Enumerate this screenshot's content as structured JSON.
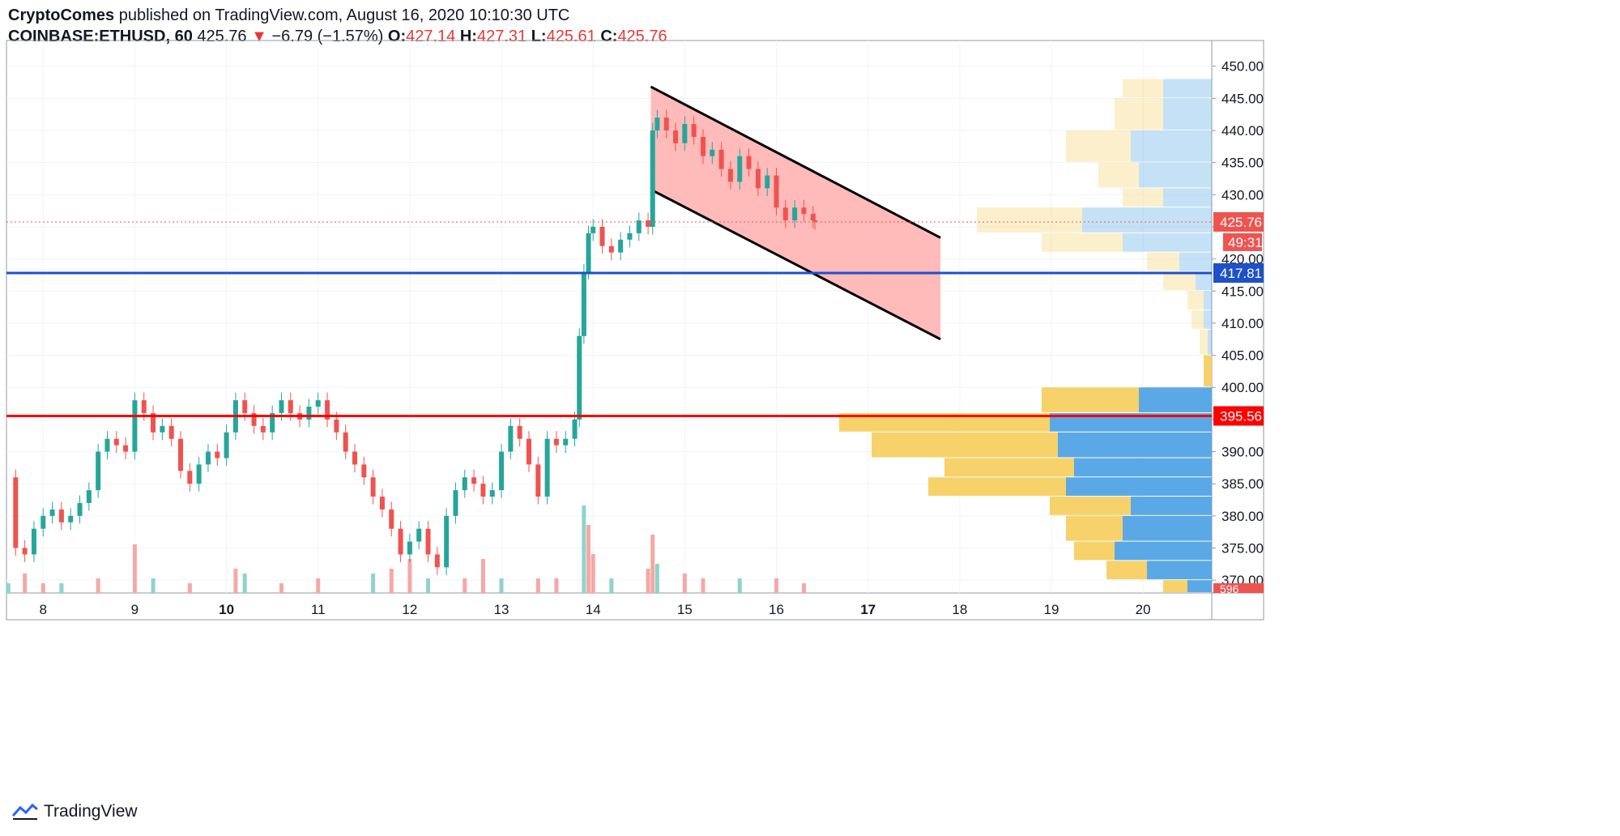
{
  "header": {
    "author": "CryptoComes",
    "published_text": "published on TradingView.com, August 16, 2020 10:10:30 UTC",
    "symbol": "COINBASE:ETHUSD, 60",
    "last": "425.76",
    "change_arrow": "▼",
    "change": "−6.79 (−1.57%)",
    "o_label": "O:",
    "o": "427.14",
    "h_label": "H:",
    "h": "427.31",
    "l_label": "L:",
    "l": "425.61",
    "c_label": "C:",
    "c": "425.76"
  },
  "footer": {
    "brand": "TradingView"
  },
  "colors": {
    "up": "#26a69a",
    "down": "#ef5350",
    "vol_up": "#8fd3cc",
    "vol_down": "#f5a8a6",
    "blue_line": "#1e50c8",
    "red_line": "#ff0000",
    "channel_fill": "#ffb3b3",
    "vp_yellow": "#f7d26a",
    "vp_blue": "#5aa9e6"
  },
  "chart_data": {
    "type": "candlestick",
    "symbol": "COINBASE:ETHUSD",
    "interval": "60",
    "y_axis": {
      "ylim": [
        368,
        454
      ],
      "ticks": [
        370,
        375,
        380,
        385,
        390,
        395,
        400,
        405,
        410,
        415,
        420,
        425,
        430,
        435,
        440,
        445,
        450
      ],
      "tick_labels": [
        "370.00",
        "375.00",
        "380.00",
        "385.00",
        "390.00",
        "395.00",
        "400.00",
        "405.00",
        "410.00",
        "415.00",
        "420.00",
        "425.00",
        "430.00",
        "435.00",
        "440.00",
        "445.00",
        "450.00"
      ]
    },
    "x_axis": {
      "day_start": 7.6,
      "day_end": 20.75,
      "ticks": [
        8,
        9,
        10,
        11,
        12,
        13,
        14,
        15,
        16,
        17,
        18,
        19,
        20
      ],
      "tick_labels": [
        "8",
        "9",
        "10",
        "11",
        "12",
        "13",
        "14",
        "15",
        "16",
        "17",
        "18",
        "19",
        "20"
      ],
      "bold_ticks": [
        "10",
        "17"
      ]
    },
    "close_path": [
      [
        7.62,
        386
      ],
      [
        7.7,
        375
      ],
      [
        7.8,
        374
      ],
      [
        7.9,
        378
      ],
      [
        8.0,
        380
      ],
      [
        8.1,
        381
      ],
      [
        8.2,
        379
      ],
      [
        8.3,
        380
      ],
      [
        8.4,
        382
      ],
      [
        8.5,
        384
      ],
      [
        8.6,
        390
      ],
      [
        8.7,
        392
      ],
      [
        8.8,
        391
      ],
      [
        8.9,
        390
      ],
      [
        9.0,
        398
      ],
      [
        9.1,
        396
      ],
      [
        9.2,
        393
      ],
      [
        9.3,
        394
      ],
      [
        9.4,
        392
      ],
      [
        9.5,
        387
      ],
      [
        9.6,
        385
      ],
      [
        9.7,
        388
      ],
      [
        9.8,
        390
      ],
      [
        9.9,
        389
      ],
      [
        10.0,
        393
      ],
      [
        10.1,
        398
      ],
      [
        10.2,
        396
      ],
      [
        10.3,
        394
      ],
      [
        10.4,
        393
      ],
      [
        10.5,
        396
      ],
      [
        10.6,
        398
      ],
      [
        10.7,
        396
      ],
      [
        10.8,
        395
      ],
      [
        10.9,
        397
      ],
      [
        11.0,
        398
      ],
      [
        11.1,
        395
      ],
      [
        11.2,
        393
      ],
      [
        11.3,
        390
      ],
      [
        11.4,
        388
      ],
      [
        11.5,
        386
      ],
      [
        11.6,
        383
      ],
      [
        11.7,
        381
      ],
      [
        11.8,
        378
      ],
      [
        11.9,
        374
      ],
      [
        12.0,
        376
      ],
      [
        12.1,
        378
      ],
      [
        12.2,
        374
      ],
      [
        12.3,
        372
      ],
      [
        12.4,
        380
      ],
      [
        12.5,
        384
      ],
      [
        12.6,
        386
      ],
      [
        12.7,
        385
      ],
      [
        12.8,
        383
      ],
      [
        12.9,
        384
      ],
      [
        13.0,
        390
      ],
      [
        13.1,
        394
      ],
      [
        13.2,
        392
      ],
      [
        13.3,
        388
      ],
      [
        13.4,
        383
      ],
      [
        13.5,
        392
      ],
      [
        13.6,
        391
      ],
      [
        13.7,
        392
      ],
      [
        13.8,
        395
      ],
      [
        13.85,
        408
      ],
      [
        13.9,
        418
      ],
      [
        13.95,
        424
      ],
      [
        14.0,
        425
      ],
      [
        14.1,
        422
      ],
      [
        14.2,
        421
      ],
      [
        14.3,
        423
      ],
      [
        14.4,
        424
      ],
      [
        14.5,
        426
      ],
      [
        14.6,
        425
      ],
      [
        14.65,
        440
      ],
      [
        14.7,
        442
      ],
      [
        14.8,
        440
      ],
      [
        14.9,
        438
      ],
      [
        15.0,
        441
      ],
      [
        15.1,
        439
      ],
      [
        15.2,
        436
      ],
      [
        15.3,
        437
      ],
      [
        15.4,
        434
      ],
      [
        15.5,
        432
      ],
      [
        15.6,
        436
      ],
      [
        15.7,
        434
      ],
      [
        15.8,
        431
      ],
      [
        15.9,
        433
      ],
      [
        16.0,
        428
      ],
      [
        16.1,
        426
      ],
      [
        16.2,
        428
      ],
      [
        16.3,
        427
      ],
      [
        16.4,
        426
      ],
      [
        16.42,
        425.76
      ]
    ],
    "volume_bars": [
      [
        7.62,
        2
      ],
      [
        7.8,
        4
      ],
      [
        8.0,
        2
      ],
      [
        8.2,
        2
      ],
      [
        8.6,
        3
      ],
      [
        9.0,
        10
      ],
      [
        9.2,
        3
      ],
      [
        9.6,
        2
      ],
      [
        10.1,
        5
      ],
      [
        10.2,
        4
      ],
      [
        10.6,
        2
      ],
      [
        11.0,
        3
      ],
      [
        11.6,
        4
      ],
      [
        11.8,
        5
      ],
      [
        12.0,
        7
      ],
      [
        12.2,
        3
      ],
      [
        12.6,
        3
      ],
      [
        12.8,
        7
      ],
      [
        13.0,
        3
      ],
      [
        13.4,
        3
      ],
      [
        13.6,
        3
      ],
      [
        13.9,
        18
      ],
      [
        13.95,
        14
      ],
      [
        14.0,
        8
      ],
      [
        14.2,
        3
      ],
      [
        14.6,
        5
      ],
      [
        14.65,
        12
      ],
      [
        14.7,
        6
      ],
      [
        15.0,
        4
      ],
      [
        15.2,
        3
      ],
      [
        15.6,
        3
      ],
      [
        16.0,
        3
      ],
      [
        16.3,
        2
      ]
    ],
    "last_price": 425.76,
    "price_label": "425.76",
    "countdown_label": "49:31",
    "support_lines": [
      {
        "value": 417.81,
        "label": "417.81",
        "color": "#1e50c8"
      },
      {
        "value": 395.56,
        "label": "395.56",
        "color": "#ff0000"
      }
    ],
    "channel": {
      "upper": [
        [
          14.63,
          446.8
        ],
        [
          17.79,
          423.3
        ]
      ],
      "lower": [
        [
          14.63,
          430.8
        ],
        [
          17.79,
          407.5
        ]
      ]
    },
    "volume_profile": [
      {
        "low": 445,
        "high": 448,
        "up_width": 0.5,
        "down_width": 0.6
      },
      {
        "low": 440,
        "high": 445,
        "up_width": 0.6,
        "down_width": 0.6
      },
      {
        "low": 435,
        "high": 440,
        "up_width": 0.8,
        "down_width": 1.0
      },
      {
        "low": 431,
        "high": 435,
        "up_width": 0.5,
        "down_width": 0.9
      },
      {
        "low": 428,
        "high": 431,
        "up_width": 0.5,
        "down_width": 0.6
      },
      {
        "low": 424,
        "high": 428,
        "up_width": 1.3,
        "down_width": 1.6
      },
      {
        "low": 421,
        "high": 424,
        "up_width": 1.0,
        "down_width": 1.1
      },
      {
        "low": 418,
        "high": 421,
        "up_width": 0.4,
        "down_width": 0.4
      },
      {
        "low": 415,
        "high": 418,
        "up_width": 0.4,
        "down_width": 0.2
      },
      {
        "low": 412,
        "high": 415,
        "up_width": 0.2,
        "down_width": 0.1
      },
      {
        "low": 409,
        "high": 412,
        "up_width": 0.15,
        "down_width": 0.1
      },
      {
        "low": 405,
        "high": 409,
        "up_width": 0.1,
        "down_width": 0.05
      },
      {
        "low": 400,
        "high": 405,
        "up_width": 0.1,
        "down_width": 0.0
      },
      {
        "low": 396,
        "high": 400,
        "up_width": 1.2,
        "down_width": 0.9
      },
      {
        "low": 393,
        "high": 396,
        "up_width": 2.6,
        "down_width": 2.0
      },
      {
        "low": 389,
        "high": 393,
        "up_width": 2.3,
        "down_width": 1.9
      },
      {
        "low": 386,
        "high": 389,
        "up_width": 1.6,
        "down_width": 1.7
      },
      {
        "low": 383,
        "high": 386,
        "up_width": 1.7,
        "down_width": 1.8
      },
      {
        "low": 380,
        "high": 383,
        "up_width": 1.0,
        "down_width": 1.0
      },
      {
        "low": 376,
        "high": 380,
        "up_width": 0.7,
        "down_width": 1.1
      },
      {
        "low": 373,
        "high": 376,
        "up_width": 0.5,
        "down_width": 1.2
      },
      {
        "low": 370,
        "high": 373,
        "up_width": 0.5,
        "down_width": 0.8
      },
      {
        "low": 368,
        "high": 370,
        "up_width": 0.3,
        "down_width": 0.3
      }
    ],
    "axis_corner_label": "596"
  }
}
